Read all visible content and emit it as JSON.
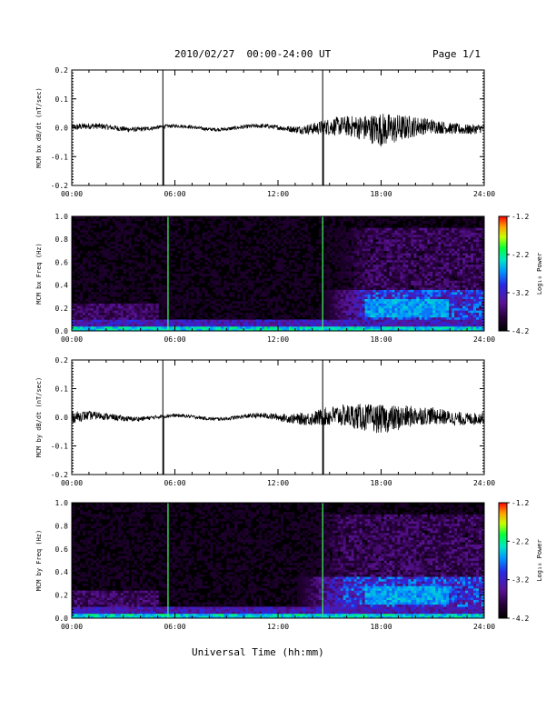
{
  "header": {
    "title": "2010/02/27  00:00-24:00 UT",
    "page": "Page 1/1"
  },
  "x_axis_title": "Universal Time (hh:mm)",
  "colorbar": {
    "label": "Log₁₀ Power",
    "ticks": [
      "-1.2",
      "-2.2",
      "-3.2",
      "-4.2"
    ],
    "range": [
      -4.2,
      -1.2
    ]
  },
  "chart_data": [
    {
      "type": "line",
      "ylabel": "MCM bx dB/dt (nT/sec)",
      "xlim": [
        0,
        24
      ],
      "ylim": [
        -0.2,
        0.2
      ],
      "x_ticks": [
        "00:00",
        "06:00",
        "12:00",
        "18:00",
        "24:00"
      ],
      "y_ticks": [
        "0.2",
        "0.1",
        "0.0",
        "-0.1",
        "-0.2"
      ],
      "spikes_hours": [
        5.3,
        14.6
      ],
      "series": [
        {
          "x": [
            0,
            2,
            4,
            6,
            8,
            10,
            12,
            13,
            14,
            15,
            16,
            17,
            18,
            19,
            20,
            21,
            22,
            23,
            24
          ],
          "amplitude": [
            0.012,
            0.01,
            0.008,
            0.006,
            0.006,
            0.007,
            0.008,
            0.012,
            0.02,
            0.03,
            0.035,
            0.045,
            0.06,
            0.05,
            0.035,
            0.025,
            0.02,
            0.018,
            0.015
          ]
        }
      ]
    },
    {
      "type": "heatmap",
      "ylabel": "MCM bx Freq (Hz)",
      "xlim": [
        0,
        24
      ],
      "ylim": [
        0,
        1.0
      ],
      "x_ticks": [
        "00:00",
        "06:00",
        "12:00",
        "18:00",
        "24:00"
      ],
      "y_ticks": [
        "1.0",
        "0.8",
        "0.6",
        "0.4",
        "0.2",
        "0.0"
      ],
      "vertical_lines_hours": [
        5.6,
        14.6
      ],
      "high_power_band_hz": [
        0.0,
        0.05
      ],
      "active_region": {
        "hours": [
          14.5,
          24
        ],
        "freq_hz": [
          0.1,
          0.35
        ]
      }
    },
    {
      "type": "line",
      "ylabel": "MCM by dB/dt (nT/sec)",
      "xlim": [
        0,
        24
      ],
      "ylim": [
        -0.2,
        0.2
      ],
      "x_ticks": [
        "00:00",
        "06:00",
        "12:00",
        "18:00",
        "24:00"
      ],
      "y_ticks": [
        "0.2",
        "0.1",
        "0.0",
        "-0.1",
        "-0.2"
      ],
      "spikes_hours": [
        5.3,
        14.6
      ],
      "series": [
        {
          "x": [
            0,
            2,
            4,
            6,
            8,
            10,
            12,
            13,
            14,
            15,
            16,
            17,
            18,
            19,
            20,
            21,
            22,
            23,
            24
          ],
          "amplitude": [
            0.02,
            0.012,
            0.008,
            0.006,
            0.006,
            0.007,
            0.012,
            0.018,
            0.025,
            0.035,
            0.04,
            0.048,
            0.05,
            0.045,
            0.035,
            0.03,
            0.025,
            0.022,
            0.02
          ]
        }
      ]
    },
    {
      "type": "heatmap",
      "ylabel": "MCM by Freq (Hz)",
      "xlim": [
        0,
        24
      ],
      "ylim": [
        0,
        1.0
      ],
      "x_ticks": [
        "00:00",
        "06:00",
        "12:00",
        "18:00",
        "24:00"
      ],
      "y_ticks": [
        "1.0",
        "0.8",
        "0.6",
        "0.4",
        "0.2",
        "0.0"
      ],
      "vertical_lines_hours": [
        5.6,
        14.6
      ],
      "high_power_band_hz": [
        0.0,
        0.05
      ],
      "active_region": {
        "hours": [
          13.0,
          24
        ],
        "freq_hz": [
          0.1,
          0.35
        ]
      }
    }
  ]
}
